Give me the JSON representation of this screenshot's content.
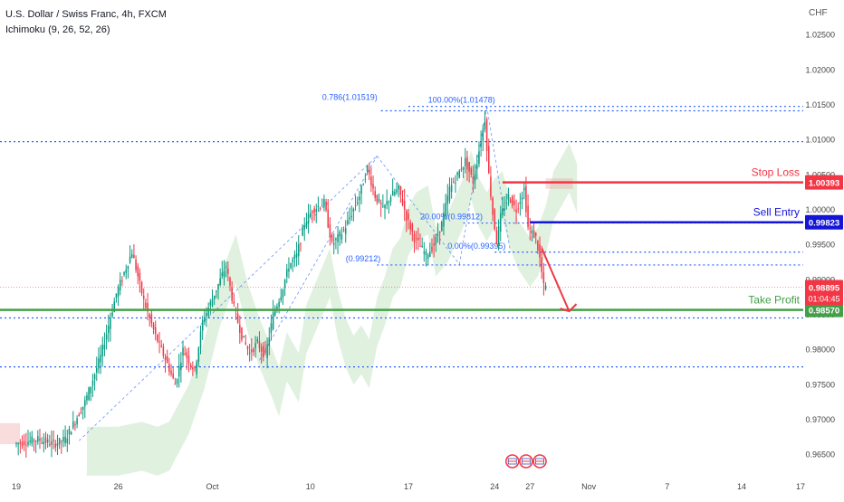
{
  "legend": {
    "symbol": "U.S. Dollar / Swiss Franc, 4h, FXCM",
    "indicator": "Ichimoku (9, 26, 52, 26)"
  },
  "currency": "CHF",
  "colors": {
    "up": "#089981",
    "down": "#f23645",
    "fib": "#2962ff",
    "stop": "#f23645",
    "entry": "#1515d8",
    "profit": "#43a047",
    "cloud_bull": "#a5d6a7",
    "cloud_bear": "#ef9a9a",
    "arrow": "#f23645"
  },
  "chart_data": {
    "type": "candlestick",
    "title": "U.S. Dollar / Swiss Franc, 4h, FXCM",
    "ylim": [
      0.965,
      1.03
    ],
    "y_ticks": [
      "1.02500",
      "1.02000",
      "1.01500",
      "1.01000",
      "1.00500",
      "1.00000",
      "0.99500",
      "0.99000",
      "0.98500",
      "0.98000",
      "0.97500",
      "0.97000",
      "0.96500"
    ],
    "y_tick_values": [
      1.025,
      1.02,
      1.015,
      1.01,
      1.005,
      1.0,
      0.995,
      0.99,
      0.985,
      0.98,
      0.975,
      0.97,
      0.965
    ],
    "x_ticks": [
      "19",
      "26",
      "Oct",
      "10",
      "17",
      "24",
      "27",
      "Nov",
      "7",
      "14",
      "17"
    ],
    "x_tick_index": [
      0,
      26,
      50,
      75,
      100,
      122,
      131,
      146,
      166,
      185,
      200
    ],
    "price_path": [
      [
        0,
        0.9665
      ],
      [
        6,
        0.9672
      ],
      [
        10,
        0.9665
      ],
      [
        13,
        0.9672
      ],
      [
        18,
        0.9725
      ],
      [
        22,
        0.979
      ],
      [
        26,
        0.988
      ],
      [
        30,
        0.994
      ],
      [
        33,
        0.987
      ],
      [
        36,
        0.982
      ],
      [
        39,
        0.978
      ],
      [
        41,
        0.975
      ],
      [
        43,
        0.98
      ],
      [
        46,
        0.977
      ],
      [
        48,
        0.984
      ],
      [
        51,
        0.988
      ],
      [
        54,
        0.992
      ],
      [
        56,
        0.986
      ],
      [
        58,
        0.982
      ],
      [
        60,
        0.9795
      ],
      [
        62,
        0.981
      ],
      [
        64,
        0.979
      ],
      [
        66,
        0.985
      ],
      [
        68,
        0.988
      ],
      [
        70,
        0.992
      ],
      [
        72,
        0.9935
      ],
      [
        74,
        0.998
      ],
      [
        76,
        1.0
      ],
      [
        79,
        1.001
      ],
      [
        81,
        0.995
      ],
      [
        84,
        0.997
      ],
      [
        88,
        1.002
      ],
      [
        90,
        1.006
      ],
      [
        92,
        1.002
      ],
      [
        94,
        1.0
      ],
      [
        96,
        1.002
      ],
      [
        98,
        1.003
      ],
      [
        100,
        0.999
      ],
      [
        102,
        0.996
      ],
      [
        105,
        0.9935
      ],
      [
        107,
        0.995
      ],
      [
        109,
        0.998
      ],
      [
        111,
        1.003
      ],
      [
        113,
        1.005
      ],
      [
        115,
        1.007
      ],
      [
        117,
        1.004
      ],
      [
        119,
        1.01
      ],
      [
        120,
        1.013
      ],
      [
        121,
        1.005
      ],
      [
        122,
        0.9995
      ],
      [
        123,
        0.9955
      ],
      [
        124,
        0.999
      ],
      [
        126,
        1.002
      ],
      [
        128,
        1.0
      ],
      [
        130,
        1.003
      ],
      [
        131,
        0.9975
      ],
      [
        133,
        0.996
      ],
      [
        134,
        0.993
      ],
      [
        135,
        0.989
      ]
    ],
    "fib_levels": [
      {
        "label": "0.786(1.01519)",
        "value": 1.01519
      },
      {
        "label": "100.00%(1.01478)",
        "value": 1.01478
      },
      {
        "label": "20.00%(0.99812)",
        "value": 0.99812
      },
      {
        "label": "0.00%(0.99395)",
        "value": 0.99395
      },
      {
        "label": "(0.99212)",
        "value": 0.99212
      }
    ],
    "dotted_levels": [
      1.00975,
      0.98455,
      0.97755
    ],
    "trade": {
      "stop_loss": {
        "label": "Stop Loss",
        "value": 1.00393,
        "tag": "1.00393"
      },
      "sell_entry": {
        "label": "Sell Entry",
        "value": 0.99823,
        "tag": "0.99823"
      },
      "take_profit": {
        "label": "Take Profit",
        "value": 0.9857,
        "tag": "0.98570"
      }
    },
    "current_price": {
      "value": 0.98895,
      "tag": "0.98895",
      "countdown": "01:04:45"
    }
  }
}
